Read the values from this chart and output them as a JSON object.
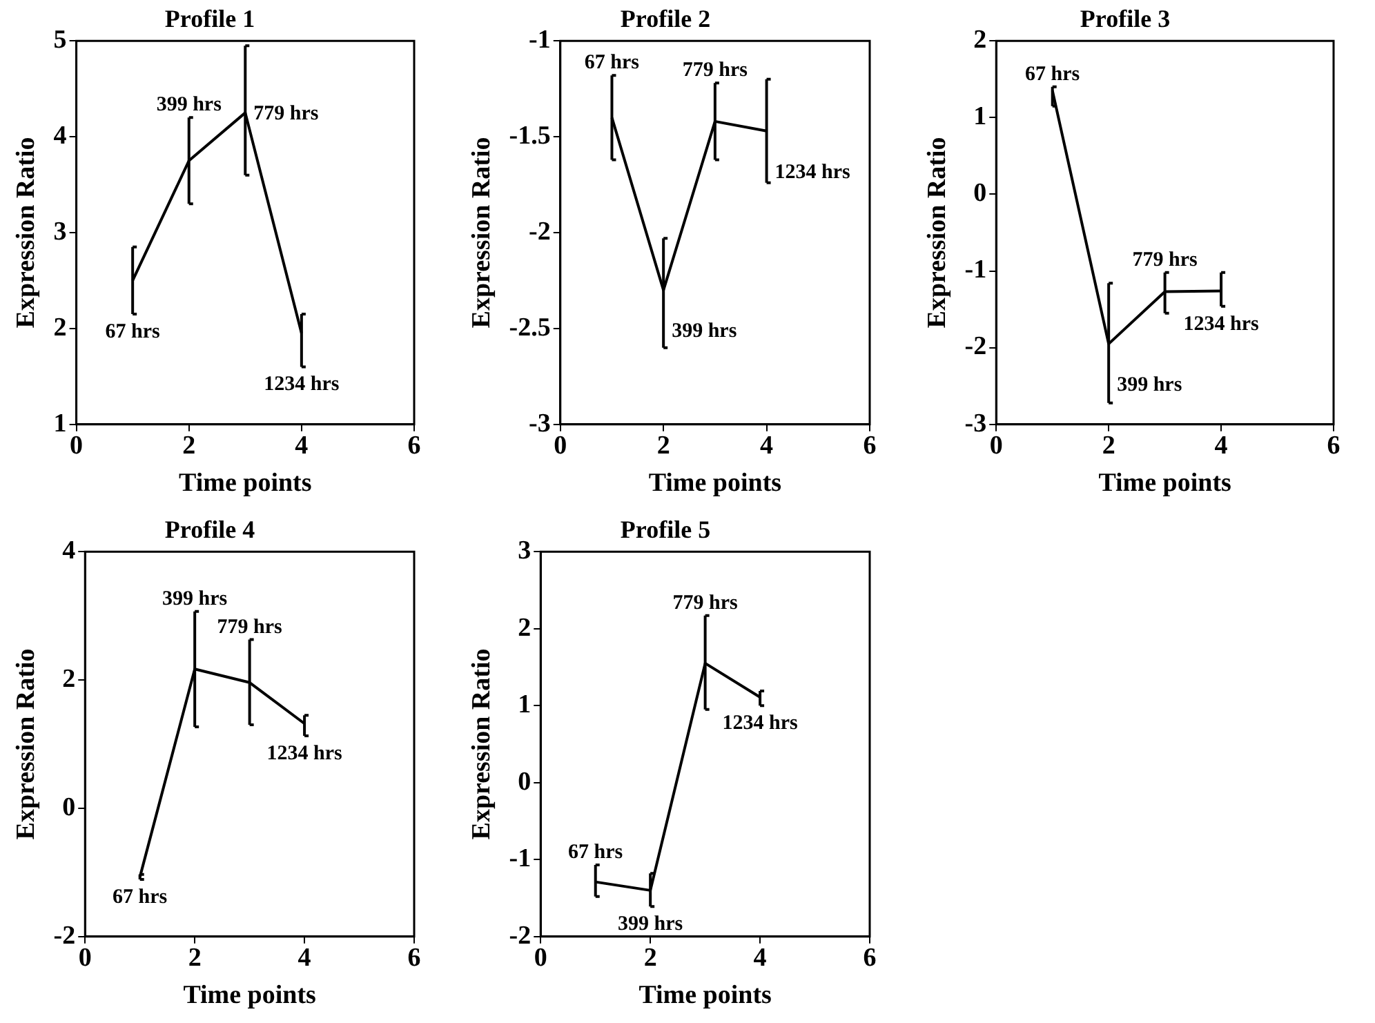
{
  "chart_data": [
    {
      "type": "line",
      "title": "Profile 1",
      "xlabel": "Time points",
      "ylabel": "Expression Ratio",
      "x": [
        1,
        2,
        3,
        4
      ],
      "xlim": [
        0,
        6
      ],
      "xticks": [
        0,
        2,
        4,
        6
      ],
      "ylim": [
        1,
        5
      ],
      "yticks": [
        1,
        2,
        3,
        4,
        5
      ],
      "grid": false,
      "legend": false,
      "marker": "none",
      "line_style": "solid",
      "series": [
        {
          "color": "#000000",
          "values": [
            2.5,
            3.75,
            4.25,
            1.95
          ],
          "errors": [
            [
              2.15,
              2.85
            ],
            [
              3.3,
              4.2
            ],
            [
              3.6,
              4.95
            ],
            [
              1.6,
              2.15
            ]
          ]
        }
      ],
      "annotations": [
        {
          "text": "67 hrs",
          "x": 1,
          "y": 2.5
        },
        {
          "text": "399 hrs",
          "x": 2,
          "y": 3.75
        },
        {
          "text": "779 hrs",
          "x": 3,
          "y": 4.25
        },
        {
          "text": "1234 hrs",
          "x": 4,
          "y": 1.95
        }
      ]
    },
    {
      "type": "line",
      "title": "Profile 2",
      "xlabel": "Time points",
      "ylabel": "Expression Ratio",
      "x": [
        1,
        2,
        3,
        4
      ],
      "xlim": [
        0,
        6
      ],
      "xticks": [
        0,
        2,
        4,
        6
      ],
      "ylim": [
        -3,
        -1
      ],
      "yticks": [
        -3,
        -2.5,
        -2,
        -1.5,
        -1
      ],
      "grid": false,
      "legend": false,
      "marker": "none",
      "line_style": "solid",
      "series": [
        {
          "color": "#000000",
          "values": [
            -1.4,
            -2.3,
            -1.42,
            -1.47
          ],
          "errors": [
            [
              -1.62,
              -1.18
            ],
            [
              -2.6,
              -2.03
            ],
            [
              -1.62,
              -1.22
            ],
            [
              -1.74,
              -1.2
            ]
          ]
        }
      ],
      "annotations": [
        {
          "text": "67 hrs",
          "x": 1,
          "y": -1.4
        },
        {
          "text": "399 hrs",
          "x": 2,
          "y": -2.3
        },
        {
          "text": "779 hrs",
          "x": 3,
          "y": -1.42
        },
        {
          "text": "1234 hrs",
          "x": 4,
          "y": -1.47
        }
      ]
    },
    {
      "type": "line",
      "title": "Profile 3",
      "xlabel": "Time points",
      "ylabel": "Expression Ratio",
      "x": [
        1,
        2,
        3,
        4
      ],
      "xlim": [
        0,
        6
      ],
      "xticks": [
        0,
        2,
        4,
        6
      ],
      "ylim": [
        -3,
        2
      ],
      "yticks": [
        -3,
        -2,
        -1,
        0,
        1,
        2
      ],
      "grid": false,
      "legend": false,
      "marker": "none",
      "line_style": "solid",
      "series": [
        {
          "color": "#000000",
          "values": [
            1.35,
            -1.95,
            -1.27,
            -1.26
          ],
          "errors": [
            [
              1.15,
              1.4
            ],
            [
              -2.72,
              -1.16
            ],
            [
              -1.55,
              -1.02
            ],
            [
              -1.46,
              -1.02
            ]
          ]
        }
      ],
      "annotations": [
        {
          "text": "67 hrs",
          "x": 1,
          "y": 1.35
        },
        {
          "text": "399 hrs",
          "x": 2,
          "y": -1.95
        },
        {
          "text": "779 hrs",
          "x": 3,
          "y": -1.27
        },
        {
          "text": "1234 hrs",
          "x": 4,
          "y": -1.26
        }
      ]
    },
    {
      "type": "line",
      "title": "Profile 4",
      "xlabel": "Time points",
      "ylabel": "Expression Ratio",
      "x": [
        1,
        2,
        3,
        4
      ],
      "xlim": [
        0,
        6
      ],
      "xticks": [
        0,
        2,
        4,
        6
      ],
      "ylim": [
        -2,
        4
      ],
      "yticks": [
        -2,
        0,
        2,
        4
      ],
      "grid": false,
      "legend": false,
      "marker": "none",
      "line_style": "solid",
      "series": [
        {
          "color": "#000000",
          "values": [
            -1.07,
            2.17,
            1.96,
            1.32
          ],
          "errors": [
            [
              -1.11,
              -1.03
            ],
            [
              1.27,
              3.07
            ],
            [
              1.3,
              2.63
            ],
            [
              1.13,
              1.45
            ]
          ]
        }
      ],
      "annotations": [
        {
          "text": "67 hrs",
          "x": 1,
          "y": -1.07
        },
        {
          "text": "399 hrs",
          "x": 2,
          "y": 2.17
        },
        {
          "text": "779 hrs",
          "x": 3,
          "y": 1.96
        },
        {
          "text": "1234 hrs",
          "x": 4,
          "y": 1.32
        }
      ]
    },
    {
      "type": "line",
      "title": "Profile 5",
      "xlabel": "Time points",
      "ylabel": "Expression Ratio",
      "x": [
        1,
        2,
        3,
        4
      ],
      "xlim": [
        0,
        6
      ],
      "xticks": [
        0,
        2,
        4,
        6
      ],
      "ylim": [
        -2,
        3
      ],
      "yticks": [
        -2,
        -1,
        0,
        1,
        2,
        3
      ],
      "grid": false,
      "legend": false,
      "marker": "none",
      "line_style": "solid",
      "series": [
        {
          "color": "#000000",
          "values": [
            -1.29,
            -1.4,
            1.55,
            1.11
          ],
          "errors": [
            [
              -1.48,
              -1.07
            ],
            [
              -1.61,
              -1.18
            ],
            [
              0.95,
              2.17
            ],
            [
              1.0,
              1.19
            ]
          ]
        }
      ],
      "annotations": [
        {
          "text": "67 hrs",
          "x": 1,
          "y": -1.29
        },
        {
          "text": "399 hrs",
          "x": 2,
          "y": -1.4
        },
        {
          "text": "779 hrs",
          "x": 3,
          "y": 1.55
        },
        {
          "text": "1234 hrs",
          "x": 4,
          "y": 1.11
        }
      ]
    }
  ]
}
